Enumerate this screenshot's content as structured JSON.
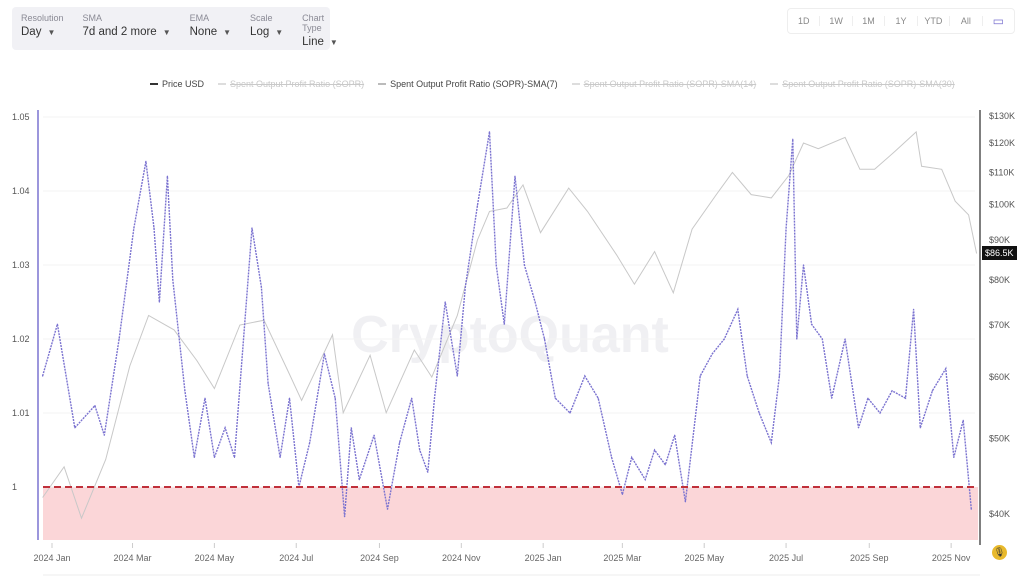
{
  "toolbar": [
    {
      "label": "Resolution",
      "value": "Day"
    },
    {
      "label": "SMA",
      "value": "7d and 2 more"
    },
    {
      "label": "EMA",
      "value": "None"
    },
    {
      "label": "Scale",
      "value": "Log"
    },
    {
      "label": "Chart Type",
      "value": "Line"
    }
  ],
  "range_buttons": [
    "1D",
    "1W",
    "1M",
    "1Y",
    "YTD",
    "All"
  ],
  "calendar_icon": "calendar-icon",
  "watermark": "CryptoQuant",
  "price_badge": "$86.5K",
  "colors": {
    "sopr_sma7": "#7b73d0",
    "price": "#c8c8c8",
    "threshold": "#c0303a",
    "below_fill": "#fbd6d8"
  },
  "chart_data": {
    "type": "line",
    "legend": [
      {
        "name": "Price USD",
        "visible": true,
        "color": "#333333"
      },
      {
        "name": "Spent Output Profit Ratio (SOPR)",
        "visible": false
      },
      {
        "name": "Spent Output Profit Ratio (SOPR)-SMA(7)",
        "visible": true,
        "color": "#7b73d0"
      },
      {
        "name": "Spent Output Profit Ratio (SOPR)-SMA(14)",
        "visible": false
      },
      {
        "name": "Spent Output Profit Ratio (SOPR)-SMA(30)",
        "visible": false
      }
    ],
    "legend_position": "top-center",
    "y_left": {
      "ticks": [
        "1",
        "1.01",
        "1.02",
        "1.03",
        "1.04",
        "1.05"
      ],
      "range": [
        0.993,
        1.052
      ]
    },
    "y_right": {
      "scale": "log",
      "ticks": [
        "$40K",
        "$50K",
        "$60K",
        "$70K",
        "$80K",
        "$90K",
        "$100K",
        "$110K",
        "$120K",
        "$130K"
      ],
      "range": [
        38000,
        131000
      ]
    },
    "x_ticks": [
      "2024 Jan",
      "2024 Mar",
      "2024 May",
      "2024 Jul",
      "2024 Sep",
      "2024 Nov",
      "2025 Jan",
      "2025 Mar",
      "2025 May",
      "2025 Jul",
      "2025 Sep",
      "2025 Nov"
    ],
    "threshold": 1,
    "sopr_sma7": [
      [
        "2023-12-25",
        1.015
      ],
      [
        "2024-01-05",
        1.022
      ],
      [
        "2024-01-18",
        1.008
      ],
      [
        "2024-02-02",
        1.011
      ],
      [
        "2024-02-09",
        1.007
      ],
      [
        "2024-02-20",
        1.02
      ],
      [
        "2024-03-02",
        1.035
      ],
      [
        "2024-03-11",
        1.044
      ],
      [
        "2024-03-17",
        1.035
      ],
      [
        "2024-03-21",
        1.025
      ],
      [
        "2024-03-27",
        1.042
      ],
      [
        "2024-03-31",
        1.028
      ],
      [
        "2024-04-09",
        1.013
      ],
      [
        "2024-04-16",
        1.004
      ],
      [
        "2024-04-24",
        1.012
      ],
      [
        "2024-05-01",
        1.004
      ],
      [
        "2024-05-09",
        1.008
      ],
      [
        "2024-05-16",
        1.004
      ],
      [
        "2024-05-29",
        1.035
      ],
      [
        "2024-06-05",
        1.027
      ],
      [
        "2024-06-10",
        1.014
      ],
      [
        "2024-06-19",
        1.004
      ],
      [
        "2024-06-26",
        1.012
      ],
      [
        "2024-07-03",
        1.0
      ],
      [
        "2024-07-11",
        1.006
      ],
      [
        "2024-07-22",
        1.018
      ],
      [
        "2024-07-30",
        1.012
      ],
      [
        "2024-08-06",
        0.996
      ],
      [
        "2024-08-11",
        1.008
      ],
      [
        "2024-08-17",
        1.001
      ],
      [
        "2024-08-28",
        1.007
      ],
      [
        "2024-09-07",
        0.997
      ],
      [
        "2024-09-16",
        1.006
      ],
      [
        "2024-09-25",
        1.012
      ],
      [
        "2024-10-01",
        1.005
      ],
      [
        "2024-10-07",
        1.002
      ],
      [
        "2024-10-12",
        1.012
      ],
      [
        "2024-10-20",
        1.025
      ],
      [
        "2024-10-29",
        1.015
      ],
      [
        "2024-11-04",
        1.027
      ],
      [
        "2024-11-13",
        1.038
      ],
      [
        "2024-11-22",
        1.048
      ],
      [
        "2024-11-27",
        1.03
      ],
      [
        "2024-12-03",
        1.022
      ],
      [
        "2024-12-11",
        1.042
      ],
      [
        "2024-12-18",
        1.03
      ],
      [
        "2024-12-26",
        1.025
      ],
      [
        "2025-01-02",
        1.02
      ],
      [
        "2025-01-10",
        1.012
      ],
      [
        "2025-01-21",
        1.01
      ],
      [
        "2025-02-01",
        1.015
      ],
      [
        "2025-02-11",
        1.012
      ],
      [
        "2025-02-21",
        1.004
      ],
      [
        "2025-03-01",
        0.999
      ],
      [
        "2025-03-08",
        1.004
      ],
      [
        "2025-03-18",
        1.001
      ],
      [
        "2025-03-25",
        1.005
      ],
      [
        "2025-04-02",
        1.003
      ],
      [
        "2025-04-09",
        1.007
      ],
      [
        "2025-04-17",
        0.998
      ],
      [
        "2025-04-28",
        1.015
      ],
      [
        "2025-05-07",
        1.018
      ],
      [
        "2025-05-16",
        1.02
      ],
      [
        "2025-05-26",
        1.024
      ],
      [
        "2025-06-02",
        1.015
      ],
      [
        "2025-06-11",
        1.01
      ],
      [
        "2025-06-20",
        1.006
      ],
      [
        "2025-06-26",
        1.015
      ],
      [
        "2025-07-01",
        1.035
      ],
      [
        "2025-07-06",
        1.047
      ],
      [
        "2025-07-09",
        1.02
      ],
      [
        "2025-07-14",
        1.03
      ],
      [
        "2025-07-20",
        1.022
      ],
      [
        "2025-07-28",
        1.02
      ],
      [
        "2025-08-04",
        1.012
      ],
      [
        "2025-08-14",
        1.02
      ],
      [
        "2025-08-24",
        1.008
      ],
      [
        "2025-08-31",
        1.012
      ],
      [
        "2025-09-09",
        1.01
      ],
      [
        "2025-09-18",
        1.013
      ],
      [
        "2025-09-28",
        1.012
      ],
      [
        "2025-10-04",
        1.024
      ],
      [
        "2025-10-09",
        1.008
      ],
      [
        "2025-10-18",
        1.013
      ],
      [
        "2025-10-28",
        1.016
      ],
      [
        "2025-11-03",
        1.004
      ],
      [
        "2025-11-10",
        1.009
      ],
      [
        "2025-11-16",
        0.997
      ]
    ],
    "price_usd": [
      [
        "2023-12-25",
        42000
      ],
      [
        "2024-01-10",
        46000
      ],
      [
        "2024-01-23",
        39500
      ],
      [
        "2024-02-10",
        47000
      ],
      [
        "2024-02-28",
        62000
      ],
      [
        "2024-03-13",
        72000
      ],
      [
        "2024-04-01",
        69000
      ],
      [
        "2024-04-18",
        63000
      ],
      [
        "2024-05-01",
        58000
      ],
      [
        "2024-05-20",
        70000
      ],
      [
        "2024-06-07",
        71000
      ],
      [
        "2024-06-25",
        61000
      ],
      [
        "2024-07-05",
        56000
      ],
      [
        "2024-07-28",
        68000
      ],
      [
        "2024-08-05",
        54000
      ],
      [
        "2024-08-25",
        64000
      ],
      [
        "2024-09-06",
        54000
      ],
      [
        "2024-09-27",
        65000
      ],
      [
        "2024-10-10",
        60000
      ],
      [
        "2024-10-29",
        72000
      ],
      [
        "2024-11-13",
        90000
      ],
      [
        "2024-11-22",
        98000
      ],
      [
        "2024-12-05",
        99000
      ],
      [
        "2024-12-17",
        106000
      ],
      [
        "2024-12-30",
        92000
      ],
      [
        "2025-01-20",
        105000
      ],
      [
        "2025-02-03",
        98000
      ],
      [
        "2025-02-25",
        86000
      ],
      [
        "2025-03-10",
        79000
      ],
      [
        "2025-03-25",
        87000
      ],
      [
        "2025-04-08",
        77000
      ],
      [
        "2025-04-22",
        93000
      ],
      [
        "2025-05-10",
        103000
      ],
      [
        "2025-05-22",
        110000
      ],
      [
        "2025-06-05",
        103000
      ],
      [
        "2025-06-20",
        102000
      ],
      [
        "2025-07-03",
        109000
      ],
      [
        "2025-07-14",
        120000
      ],
      [
        "2025-07-25",
        118000
      ],
      [
        "2025-08-14",
        122000
      ],
      [
        "2025-08-25",
        111000
      ],
      [
        "2025-09-05",
        111000
      ],
      [
        "2025-09-20",
        117000
      ],
      [
        "2025-10-06",
        124000
      ],
      [
        "2025-10-10",
        112000
      ],
      [
        "2025-10-25",
        111000
      ],
      [
        "2025-11-04",
        101000
      ],
      [
        "2025-11-14",
        97000
      ],
      [
        "2025-11-20",
        86500
      ]
    ]
  }
}
